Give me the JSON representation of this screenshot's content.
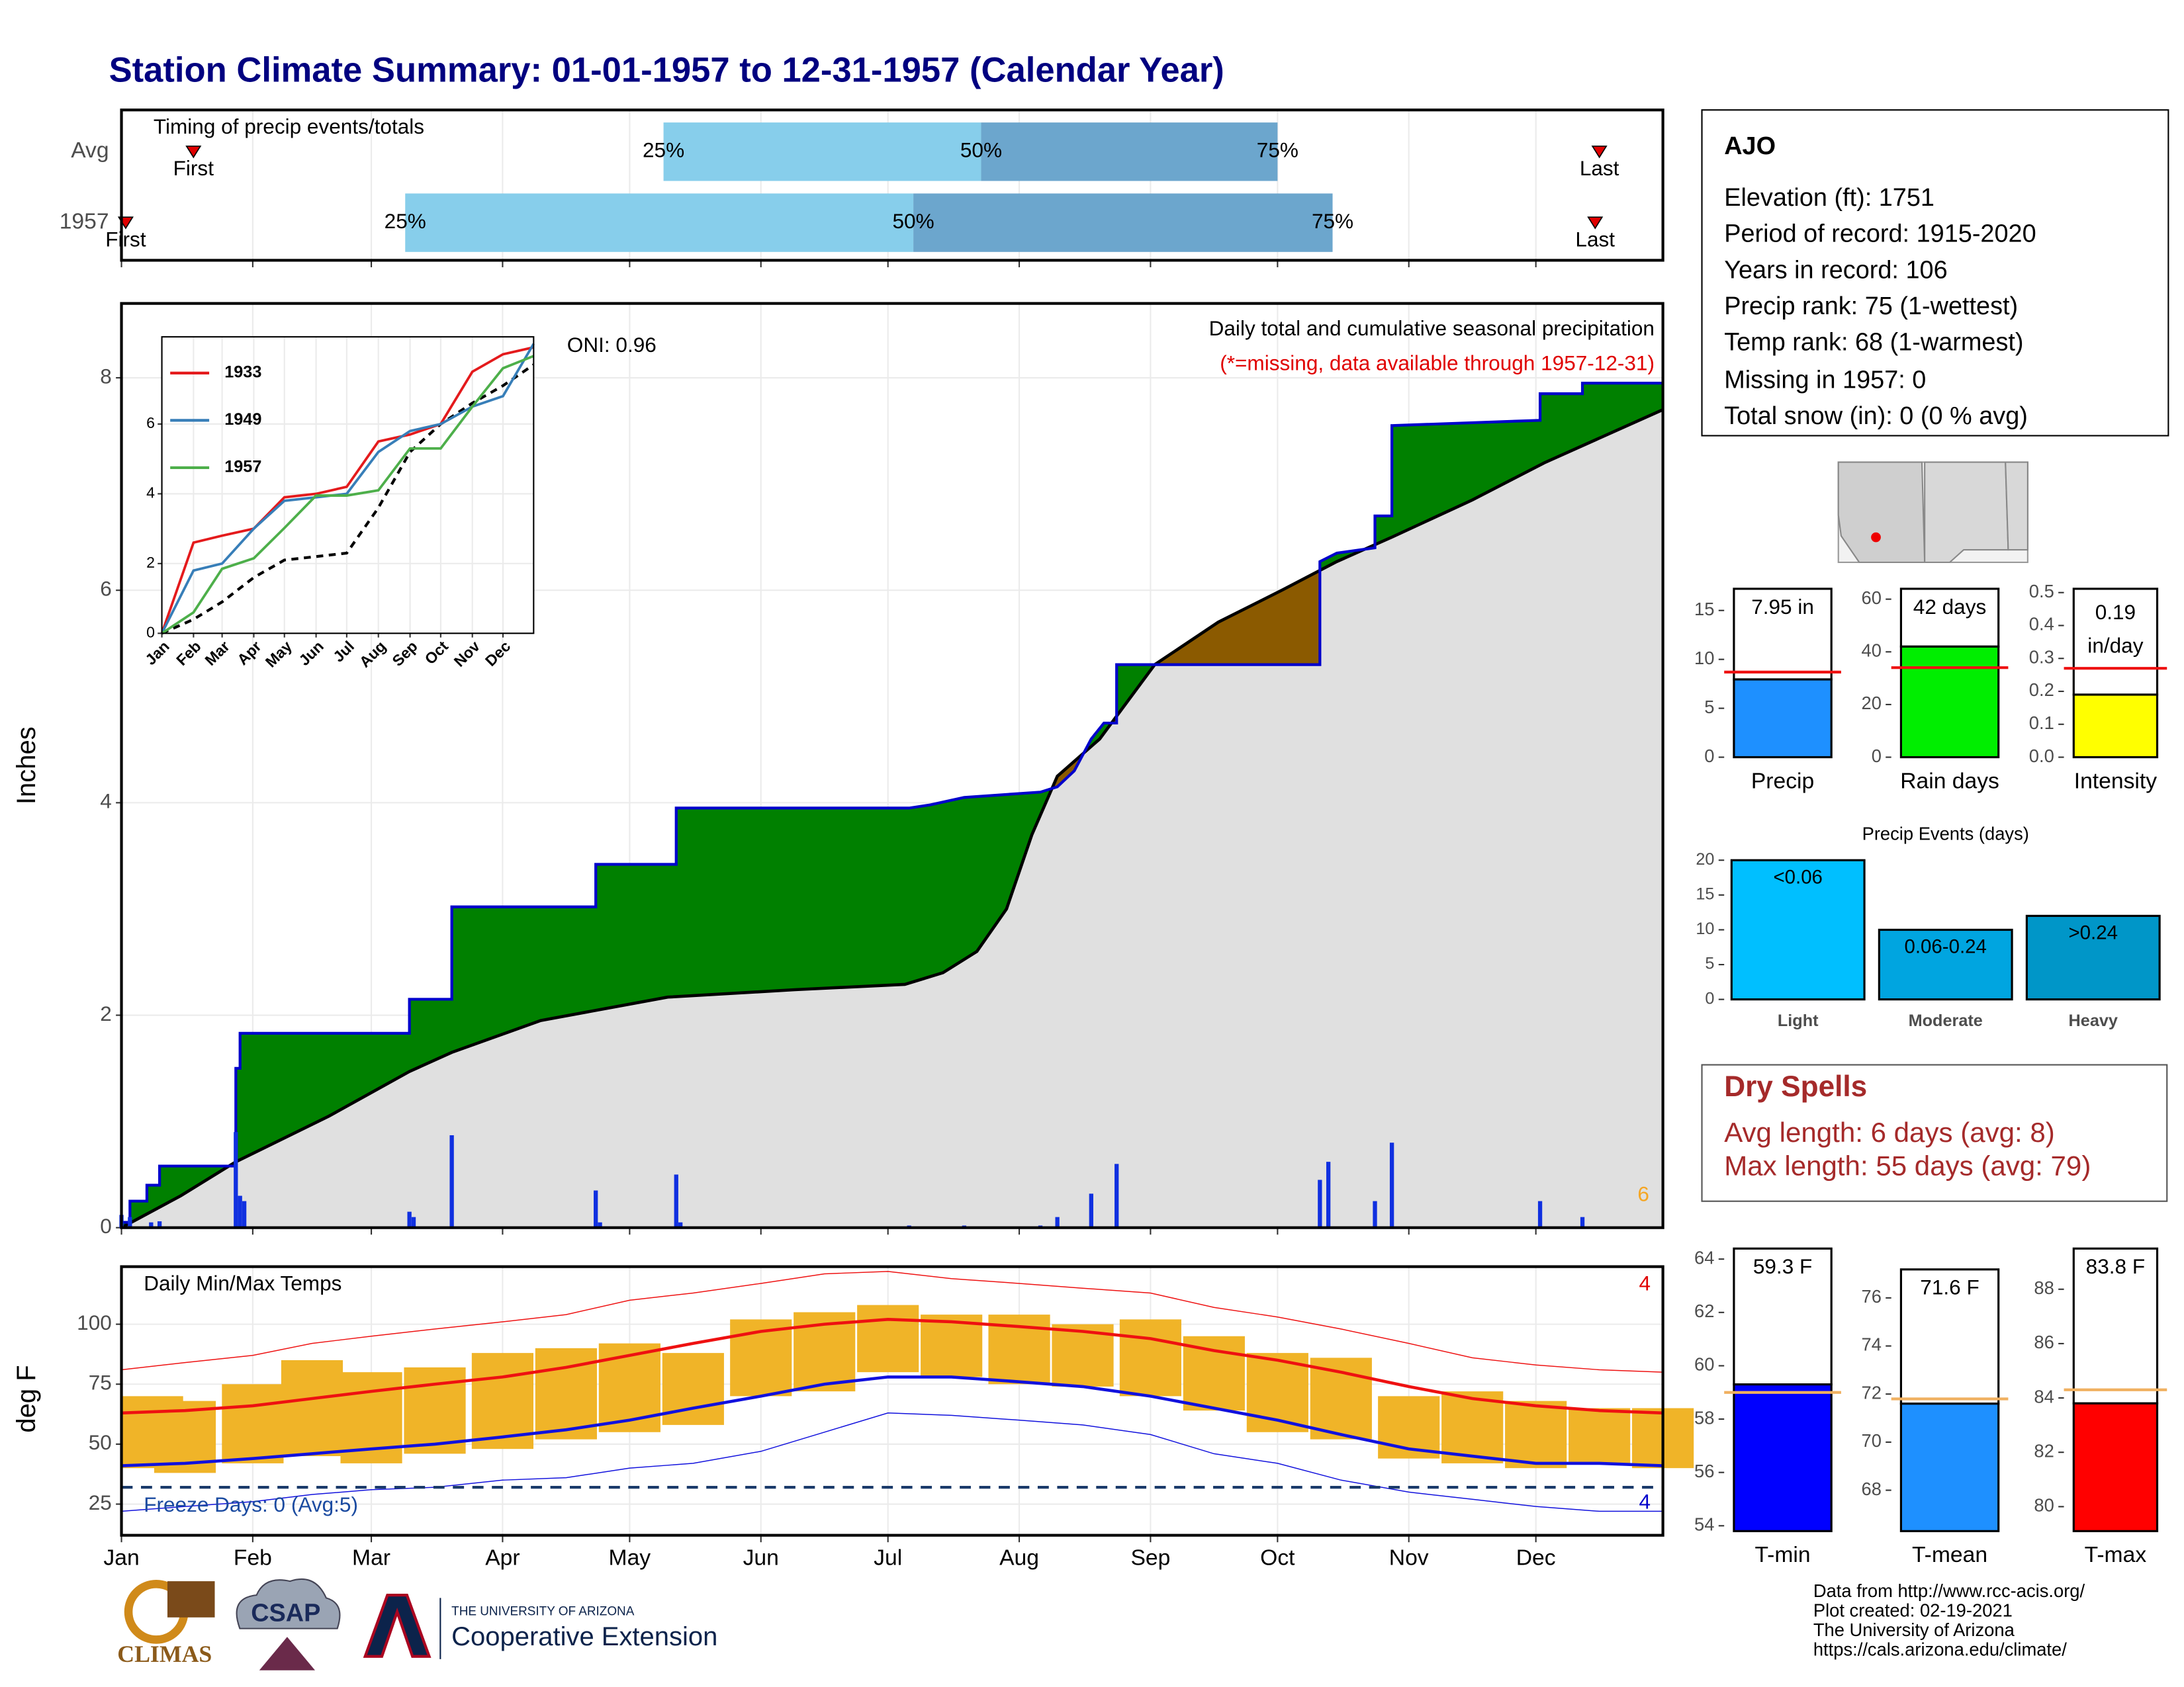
{
  "title": "Station Climate Summary: 01-01-1957 to 12-31-1957 (Calendar Year)",
  "station": {
    "name": "AJO",
    "lines": [
      "Elevation (ft): 1751",
      "Period of record: 1915-2020",
      "Years in record: 106",
      "Precip rank: 75 (1-wettest)",
      "Temp rank: 68 (1-warmest)",
      "Missing in 1957: 0",
      "Total snow (in): 0 (0 % avg)"
    ]
  },
  "dry_spells": {
    "title": "Dry Spells",
    "lines": [
      "Avg length: 6 days (avg: 8)",
      "Max length: 55 days (avg: 79)"
    ]
  },
  "footer": [
    "Data from http://www.rcc-acis.org/",
    "Plot created: 02-19-2021",
    "The University of Arizona",
    "https://cals.arizona.edu/climate/"
  ],
  "logos": [
    "CLIMAS",
    "CSAP",
    "THE UNIVERSITY OF ARIZONA",
    "Cooperative Extension"
  ],
  "chart_data": [
    {
      "type": "timing",
      "title": "Timing of precip events/totals",
      "labels": {
        "first": "First",
        "last": "Last",
        "p25": "25%",
        "p50": "50%",
        "p75": "75%"
      },
      "rows": [
        {
          "name": "Avg",
          "first": 18,
          "p25": 129,
          "p50": 204,
          "p75": 274,
          "last": 350
        },
        {
          "name": "1957",
          "first": 2,
          "p25": 68,
          "p50": 188,
          "p75": 287,
          "last": 349
        }
      ],
      "colors": [
        "#87ceeb",
        "#6ca6cd"
      ],
      "marker_color": "#e00000"
    },
    {
      "type": "precip",
      "title": "Daily total and cumulative seasonal precipitation",
      "subtitle": "(*=missing, data available through 1957-12-31)",
      "annotation": "ONI: 0.96",
      "marker_count": 6,
      "ylabel": "Inches",
      "ylim": [
        0,
        8.7
      ],
      "yticks": [
        0,
        2,
        4,
        6,
        8
      ],
      "grid": true,
      "x": [
        1,
        3,
        3,
        7,
        7,
        10,
        10,
        28,
        28,
        29,
        29,
        69,
        69,
        79,
        79,
        113,
        113,
        132,
        132,
        187,
        192,
        200,
        218,
        222,
        226,
        228,
        230,
        233,
        236,
        236,
        284,
        284,
        288,
        297,
        297,
        301,
        301,
        336,
        336,
        346,
        346,
        365
      ],
      "cumulative": [
        0.05,
        0.05,
        0.25,
        0.25,
        0.4,
        0.4,
        0.58,
        0.58,
        1.5,
        1.5,
        1.83,
        1.83,
        2.15,
        2.15,
        3.02,
        3.02,
        3.42,
        3.42,
        3.95,
        3.95,
        3.98,
        4.05,
        4.1,
        4.15,
        4.3,
        4.45,
        4.6,
        4.75,
        4.75,
        5.3,
        5.3,
        6.27,
        6.35,
        6.4,
        6.7,
        6.7,
        7.55,
        7.6,
        7.85,
        7.85,
        7.95,
        7.95
      ],
      "normal_x": [
        1,
        15,
        28,
        50,
        69,
        79,
        100,
        130,
        160,
        186,
        195,
        203,
        210,
        216,
        222,
        232,
        245,
        260,
        275,
        288,
        301,
        320,
        337,
        365
      ],
      "normal": [
        0,
        0.3,
        0.62,
        1.05,
        1.47,
        1.65,
        1.95,
        2.17,
        2.24,
        2.29,
        2.4,
        2.6,
        3.0,
        3.7,
        4.25,
        4.6,
        5.3,
        5.7,
        6.0,
        6.27,
        6.5,
        6.85,
        7.2,
        7.7
      ],
      "daily_x": [
        1,
        3,
        8,
        10,
        28,
        29,
        30,
        69,
        70,
        79,
        113,
        114,
        132,
        133,
        187,
        200,
        218,
        222,
        230,
        236,
        284,
        286,
        297,
        301,
        336,
        346
      ],
      "daily": [
        0.12,
        0.1,
        0.05,
        0.06,
        0.9,
        0.3,
        0.25,
        0.15,
        0.1,
        0.87,
        0.35,
        0.05,
        0.5,
        0.05,
        0.02,
        0.02,
        0.02,
        0.1,
        0.32,
        0.6,
        0.45,
        0.62,
        0.25,
        0.8,
        0.25,
        0.1
      ],
      "colors": {
        "above": "#008000",
        "below": "#8b5a00",
        "normal": "#e0e0e0",
        "line": "#0000cc",
        "daily": "#1030e0",
        "marker": "#f5a623"
      }
    },
    {
      "type": "line",
      "ylim": [
        0,
        8.5
      ],
      "yticks": [
        0,
        2,
        4,
        6
      ],
      "x": [
        1,
        32,
        60,
        91,
        121,
        152,
        182,
        213,
        244,
        274,
        305,
        335,
        365
      ],
      "series": [
        {
          "name": "1933",
          "color": "#e41a1c",
          "values": [
            0,
            2.6,
            2.8,
            3.0,
            3.9,
            4.0,
            4.2,
            5.5,
            5.7,
            6.0,
            7.5,
            8.0,
            8.2
          ]
        },
        {
          "name": "1949",
          "color": "#377eb8",
          "values": [
            0,
            1.8,
            2.0,
            3.0,
            3.8,
            3.9,
            4.0,
            5.2,
            5.8,
            6.0,
            6.5,
            6.8,
            8.3
          ]
        },
        {
          "name": "1957",
          "color": "#4daf4a",
          "values": [
            0,
            0.6,
            1.85,
            2.15,
            3.02,
            3.95,
            3.95,
            4.1,
            5.3,
            5.3,
            6.5,
            7.6,
            7.95
          ]
        }
      ],
      "normal": [
        0,
        0.4,
        0.9,
        1.6,
        2.1,
        2.2,
        2.3,
        3.6,
        5.2,
        6.0,
        6.6,
        7.1,
        7.7
      ]
    },
    {
      "type": "temps",
      "title": "Daily Min/Max Temps",
      "ylabel": "deg F",
      "ylim": [
        12,
        124
      ],
      "yticks": [
        25,
        50,
        75,
        100
      ],
      "grid": true,
      "xlim": [
        1,
        365
      ],
      "xticks": [
        {
          "value": 1,
          "label": "Jan"
        },
        {
          "value": 32,
          "label": "Feb"
        },
        {
          "value": 60,
          "label": "Mar"
        },
        {
          "value": 91,
          "label": "Apr"
        },
        {
          "value": 121,
          "label": "May"
        },
        {
          "value": 152,
          "label": "Jun"
        },
        {
          "value": 182,
          "label": "Jul"
        },
        {
          "value": 213,
          "label": "Aug"
        },
        {
          "value": 244,
          "label": "Sep"
        },
        {
          "value": 274,
          "label": "Oct"
        },
        {
          "value": 305,
          "label": "Nov"
        },
        {
          "value": 335,
          "label": "Dec"
        }
      ],
      "x": [
        1,
        16,
        32,
        46,
        60,
        75,
        91,
        106,
        121,
        136,
        152,
        167,
        182,
        197,
        213,
        228,
        244,
        259,
        274,
        289,
        305,
        320,
        335,
        350,
        365
      ],
      "normal_max": [
        63,
        64,
        66,
        69,
        72,
        75,
        78,
        82,
        87,
        92,
        97,
        100,
        102,
        101,
        99,
        97,
        94,
        89,
        85,
        80,
        74,
        69,
        66,
        64,
        63
      ],
      "normal_min": [
        41,
        42,
        44,
        46,
        48,
        50,
        53,
        56,
        60,
        65,
        70,
        75,
        78,
        78,
        76,
        74,
        70,
        65,
        60,
        54,
        48,
        45,
        42,
        42,
        41
      ],
      "record_max": [
        81,
        84,
        87,
        92,
        95,
        98,
        101,
        104,
        110,
        113,
        117,
        121,
        122,
        119,
        117,
        115,
        113,
        107,
        103,
        98,
        92,
        86,
        83,
        81,
        80
      ],
      "record_min": [
        22,
        24,
        26,
        29,
        31,
        32,
        35,
        36,
        40,
        42,
        47,
        55,
        63,
        62,
        60,
        58,
        54,
        46,
        42,
        35,
        30,
        27,
        24,
        22,
        22
      ],
      "daily_max": [
        70,
        68,
        75,
        85,
        80,
        82,
        88,
        90,
        92,
        88,
        102,
        105,
        108,
        104,
        104,
        100,
        102,
        95,
        88,
        86,
        70,
        72,
        68,
        65,
        65
      ],
      "daily_min": [
        40,
        38,
        42,
        45,
        42,
        46,
        48,
        52,
        55,
        58,
        70,
        72,
        80,
        78,
        75,
        74,
        70,
        64,
        55,
        52,
        44,
        42,
        40,
        42,
        40
      ],
      "freeze": 32,
      "freeze_label": "Freeze Days: 0 (Avg:5)",
      "record_high_count": 4,
      "record_low_count": 4,
      "colors": {
        "daily": "#f0b428",
        "max": "#ee1111",
        "min": "#1111dd",
        "freeze": "#1a3a6a"
      }
    },
    {
      "type": "bar",
      "categories": [
        "Precip"
      ],
      "values": [
        7.95
      ],
      "value_labels": [
        "7.95 in"
      ],
      "average": 8.7,
      "ylim": [
        0,
        17.5
      ],
      "yticks": [
        0,
        5,
        10,
        15
      ],
      "color": "#1e90ff",
      "average_color": "#ee1111"
    },
    {
      "type": "bar",
      "categories": [
        "Rain days"
      ],
      "values": [
        42
      ],
      "value_labels": [
        "42 days"
      ],
      "average": 34,
      "ylim": [
        0,
        65
      ],
      "yticks": [
        0,
        20,
        40,
        60
      ],
      "color": "#00ee00",
      "average_color": "#ee1111"
    },
    {
      "type": "bar",
      "categories": [
        "Intensity"
      ],
      "values": [
        0.19
      ],
      "value_labels": [
        "0.19 in/day"
      ],
      "average": 0.27,
      "ylim": [
        0,
        0.52
      ],
      "yticks": [
        {
          "value": 0,
          "label": "0.0"
        },
        0.1,
        0.2,
        0.3,
        0.4,
        0.5
      ],
      "color": "#ffff00",
      "average_color": "#ee1111"
    },
    {
      "type": "events",
      "title": "Precip Events (days)",
      "categories": [
        "Light",
        "Moderate",
        "Heavy"
      ],
      "values": [
        20,
        10,
        12
      ],
      "thresholds": [
        "<0.06",
        "0.06-0.24",
        ">0.24"
      ],
      "ylim": [
        0,
        21
      ],
      "yticks": [
        0,
        5,
        10,
        15,
        20
      ],
      "colors": [
        "#00bfff",
        "#00a5e0",
        "#0096c8"
      ]
    },
    {
      "type": "bar",
      "categories": [
        "T-min"
      ],
      "values": [
        59.3
      ],
      "value_labels": [
        "59.3 F"
      ],
      "average": 59.0,
      "ylim": [
        53.8,
        64.5
      ],
      "yticks": [
        54,
        56,
        58,
        60,
        62,
        64
      ],
      "color": "#0000ff",
      "average_color": "#f0b060"
    },
    {
      "type": "bar",
      "categories": [
        "T-mean"
      ],
      "values": [
        71.6
      ],
      "value_labels": [
        "71.6 F"
      ],
      "average": 71.8,
      "ylim": [
        66.3,
        77.3
      ],
      "yticks": [
        68,
        70,
        72,
        74,
        76
      ],
      "color": "#1e90ff",
      "average_color": "#f0b060"
    },
    {
      "type": "bar",
      "categories": [
        "T-max"
      ],
      "values": [
        83.8
      ],
      "value_labels": [
        "83.8 F"
      ],
      "average": 84.3,
      "ylim": [
        79.1,
        89.6
      ],
      "yticks": [
        80,
        82,
        84,
        86,
        88
      ],
      "color": "#ff0000",
      "average_color": "#f0b060"
    }
  ]
}
